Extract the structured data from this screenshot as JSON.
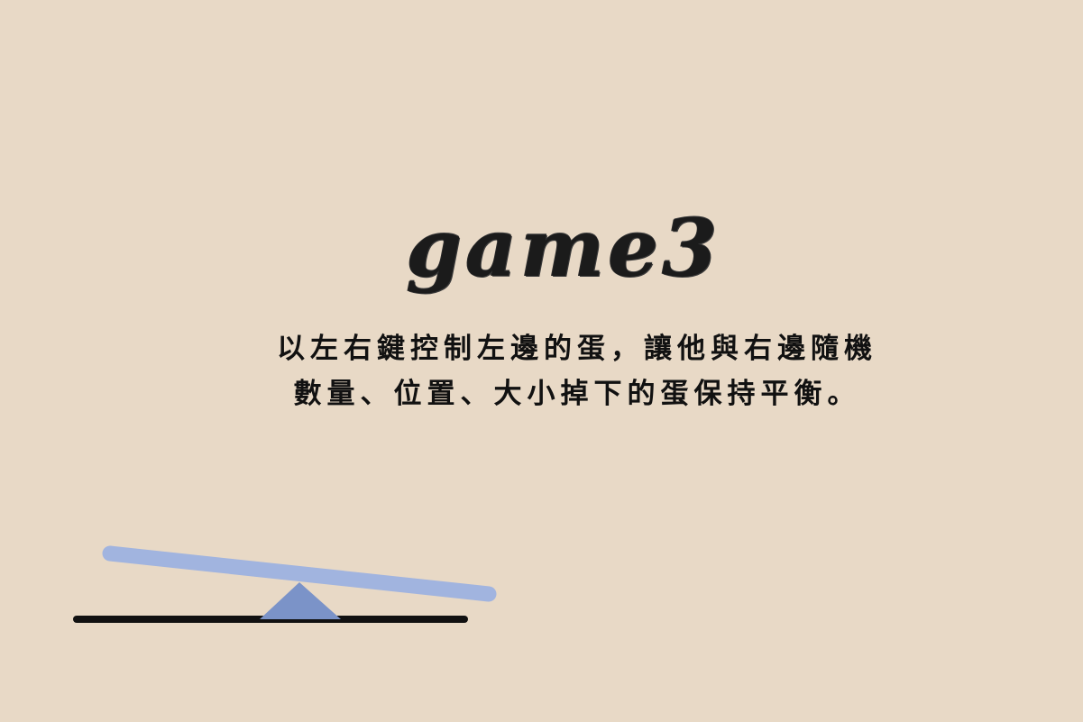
{
  "game": {
    "title": "game3",
    "instructions": [
      "以左右鍵控制左邊的蛋，讓他與右邊隨機",
      "數量、位置、大小掉下的蛋保持平衡。"
    ]
  },
  "colors": {
    "background": "#e8d9c6",
    "plank": "#a1b4df",
    "fulcrum": "#7b93c8",
    "ground": "#111111",
    "text": "#111111"
  }
}
